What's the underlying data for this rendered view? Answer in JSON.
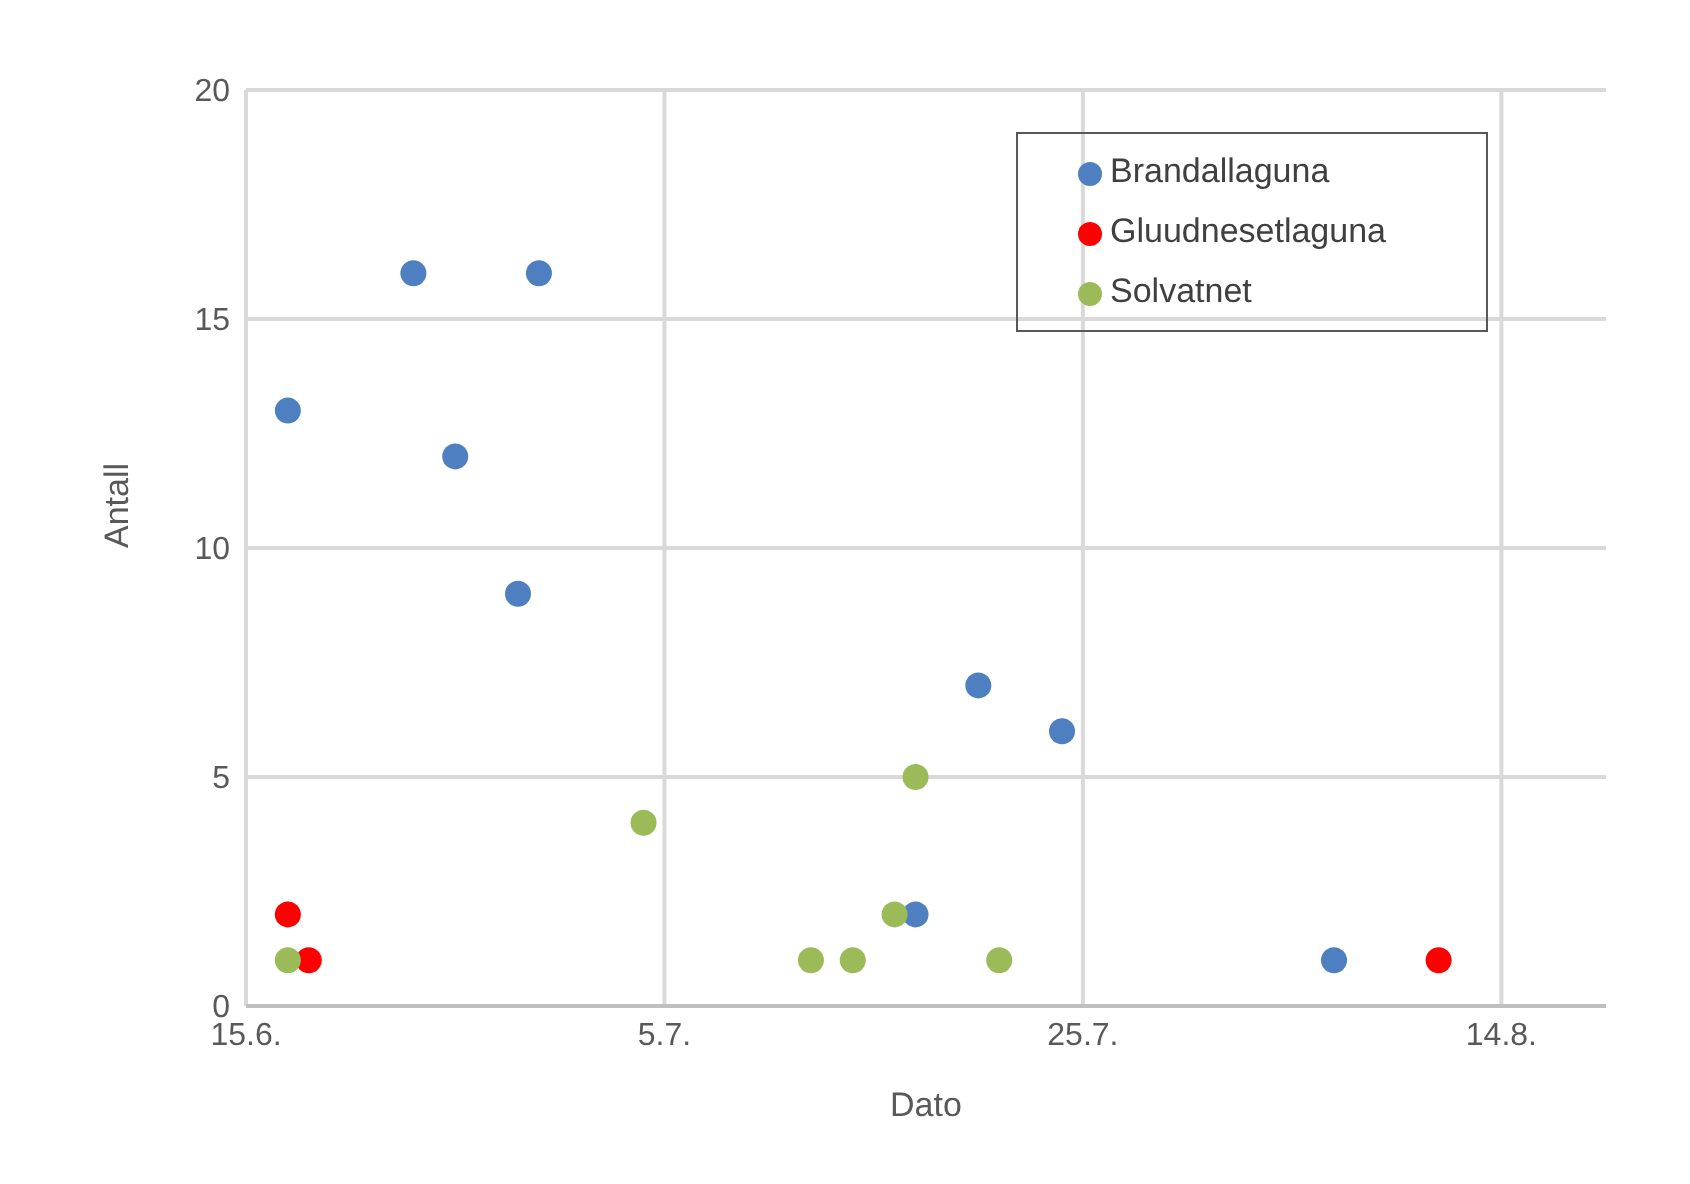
{
  "chart_data": {
    "type": "scatter",
    "xlabel": "Dato",
    "ylabel": "Antall",
    "xlim": [
      "--06-15",
      "--08-19"
    ],
    "xticks": [
      {
        "value": "--06-15",
        "label": "15.6."
      },
      {
        "value": "--07-05",
        "label": "5.7."
      },
      {
        "value": "--07-25",
        "label": "25.7."
      },
      {
        "value": "--08-14",
        "label": "14.8."
      }
    ],
    "ylim": [
      0,
      20
    ],
    "yticks": [
      0,
      5,
      10,
      15,
      20
    ],
    "grid": true,
    "legend": "top right",
    "marker": "circle",
    "series": [
      {
        "name": "Brandallaguna",
        "color": "#4e7fc0",
        "x": [
          "--06-17",
          "--06-23",
          "--06-25",
          "--06-28",
          "--06-29",
          "--07-17",
          "--07-20",
          "--07-24",
          "--08-06"
        ],
        "values": [
          13,
          16,
          12,
          9,
          16,
          2,
          7,
          6,
          1
        ]
      },
      {
        "name": "Gluudnesetlaguna",
        "color": "#ff0000",
        "x": [
          "--06-17",
          "--06-18",
          "--08-11"
        ],
        "values": [
          2,
          1,
          1
        ]
      },
      {
        "name": "Solvatnet",
        "color": "#9bbb59",
        "x": [
          "--06-17",
          "--07-04",
          "--07-12",
          "--07-14",
          "--07-16",
          "--07-17",
          "--07-21"
        ],
        "values": [
          1,
          4,
          1,
          1,
          2,
          5,
          1
        ]
      }
    ]
  }
}
